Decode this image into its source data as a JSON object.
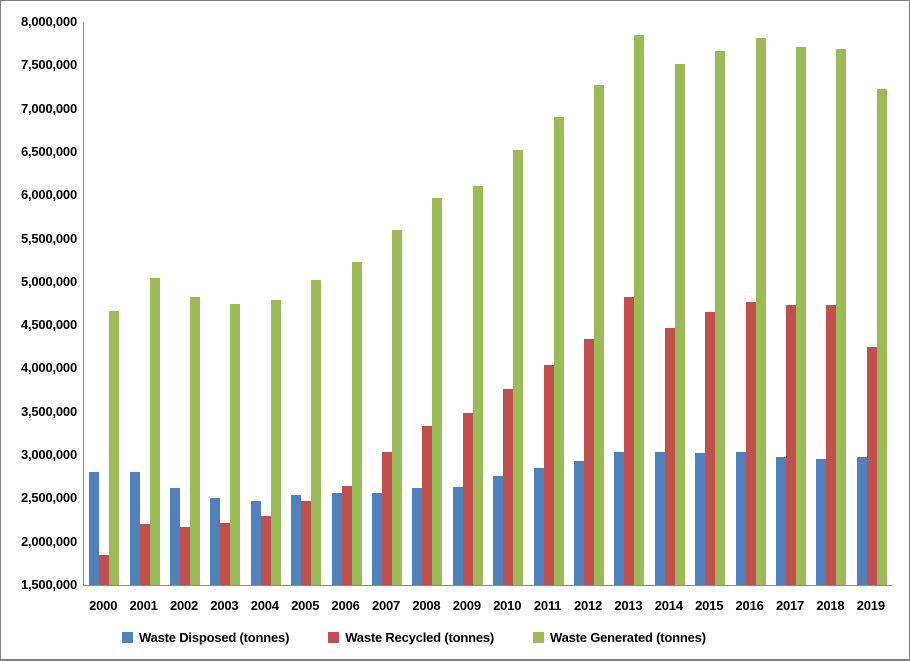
{
  "chart_data": {
    "type": "bar",
    "title": "",
    "categories": [
      "2000",
      "2001",
      "2002",
      "2003",
      "2004",
      "2005",
      "2006",
      "2007",
      "2008",
      "2009",
      "2010",
      "2011",
      "2012",
      "2013",
      "2014",
      "2015",
      "2016",
      "2017",
      "2018",
      "2019"
    ],
    "series": [
      {
        "name": "Waste Disposed (tonnes)",
        "color": "#4F81BD",
        "values": [
          2800000,
          2800000,
          2620000,
          2500000,
          2470000,
          2540000,
          2560000,
          2560000,
          2620000,
          2630000,
          2760000,
          2850000,
          2930000,
          3030000,
          3040000,
          3020000,
          3040000,
          2980000,
          2960000,
          2980000
        ]
      },
      {
        "name": "Waste Recycled (tonnes)",
        "color": "#C0504D",
        "values": [
          1850000,
          2210000,
          2170000,
          2220000,
          2300000,
          2470000,
          2640000,
          3030000,
          3340000,
          3490000,
          3760000,
          4040000,
          4340000,
          4830000,
          4470000,
          4650000,
          4770000,
          4730000,
          4730000,
          4250000
        ]
      },
      {
        "name": "Waste Generated (tonnes)",
        "color": "#9BBB59",
        "values": [
          4660000,
          5040000,
          4820000,
          4740000,
          4790000,
          5020000,
          5230000,
          5600000,
          5970000,
          6110000,
          6520000,
          6900000,
          7270000,
          7850000,
          7510000,
          7670000,
          7810000,
          7710000,
          7690000,
          7230000
        ]
      }
    ],
    "xlabel": "",
    "ylabel": "",
    "ylim": [
      1500000,
      8000000
    ],
    "ytick_step": 500000,
    "grid": false,
    "legend_position": "bottom",
    "axis_color": "#8C8C8C"
  }
}
